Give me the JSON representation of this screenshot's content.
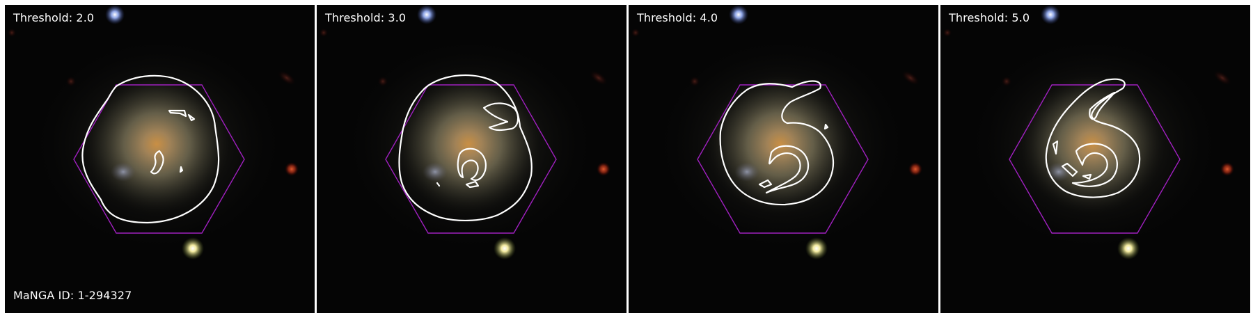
{
  "panels": [
    {
      "threshold_label": "Threshold: 2.0",
      "level": 2.0
    },
    {
      "threshold_label": "Threshold: 3.0",
      "level": 3.0
    },
    {
      "threshold_label": "Threshold: 4.0",
      "level": 4.0
    },
    {
      "threshold_label": "Threshold: 5.0",
      "level": 5.0
    }
  ],
  "manga_id_label": "MaNGA ID: 1-294327",
  "colors": {
    "background": "#050505",
    "galaxy_core": "#c9924a",
    "galaxy_disk": "#8a7a55",
    "contour": "#ffffff",
    "hexagon": "#a020c0",
    "star_blue": "#7fa6ff",
    "star_yellow": "#fff6b0",
    "star_red": "#c03a1c"
  }
}
